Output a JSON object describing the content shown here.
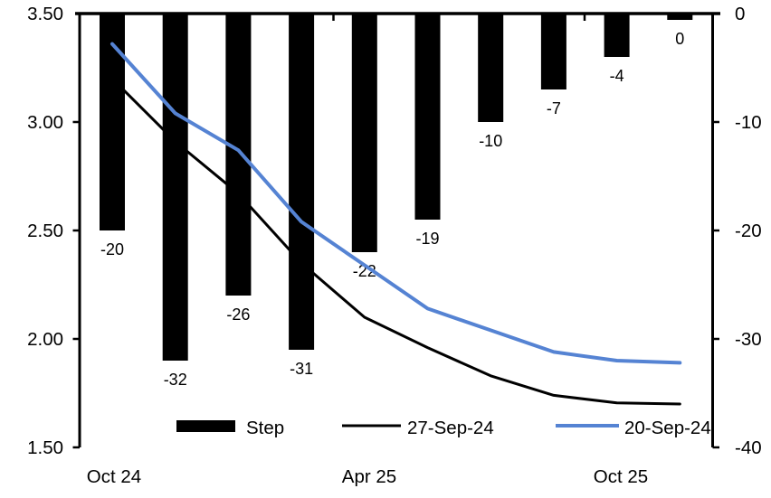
{
  "chart_data": {
    "type": "combo-bar-line",
    "title": "",
    "background": "#ffffff",
    "grid": false,
    "x_axis": {
      "tick_labels": [
        "Oct 24",
        "Apr 25",
        "Oct 25"
      ],
      "position": "bottom"
    },
    "left_axis": {
      "min": 1.5,
      "max": 3.5,
      "tick_labels": [
        "3.50",
        "3.00",
        "2.50",
        "2.00",
        "1.50"
      ]
    },
    "right_axis": {
      "min": -40,
      "max": 0,
      "tick_labels": [
        "0",
        "-10",
        "-20",
        "-30",
        "-40"
      ]
    },
    "series": [
      {
        "name": "Step",
        "type": "bar",
        "axis": "right",
        "color": "#000000",
        "values": [
          -20,
          -32,
          -26,
          -31,
          -22,
          -19,
          -10,
          -7,
          -4,
          0
        ],
        "data_labels": [
          "-20",
          "-32",
          "-26",
          "-31",
          "-22",
          "-19",
          "-10",
          "-7",
          "-4",
          "0"
        ]
      },
      {
        "name": "27-Sep-24",
        "type": "line",
        "axis": "left",
        "color": "#000000",
        "values": [
          3.2,
          2.91,
          2.67,
          2.35,
          2.1,
          1.96,
          1.83,
          1.74,
          1.705,
          1.7
        ]
      },
      {
        "name": "20-Sep-24",
        "type": "line",
        "axis": "left",
        "color": "#5583d3",
        "values": [
          3.36,
          3.04,
          2.87,
          2.54,
          2.34,
          2.14,
          2.04,
          1.94,
          1.9,
          1.89
        ]
      }
    ],
    "legend": {
      "position": "bottom-inside",
      "items": [
        "Step",
        "27-Sep-24",
        "20-Sep-24"
      ]
    }
  }
}
